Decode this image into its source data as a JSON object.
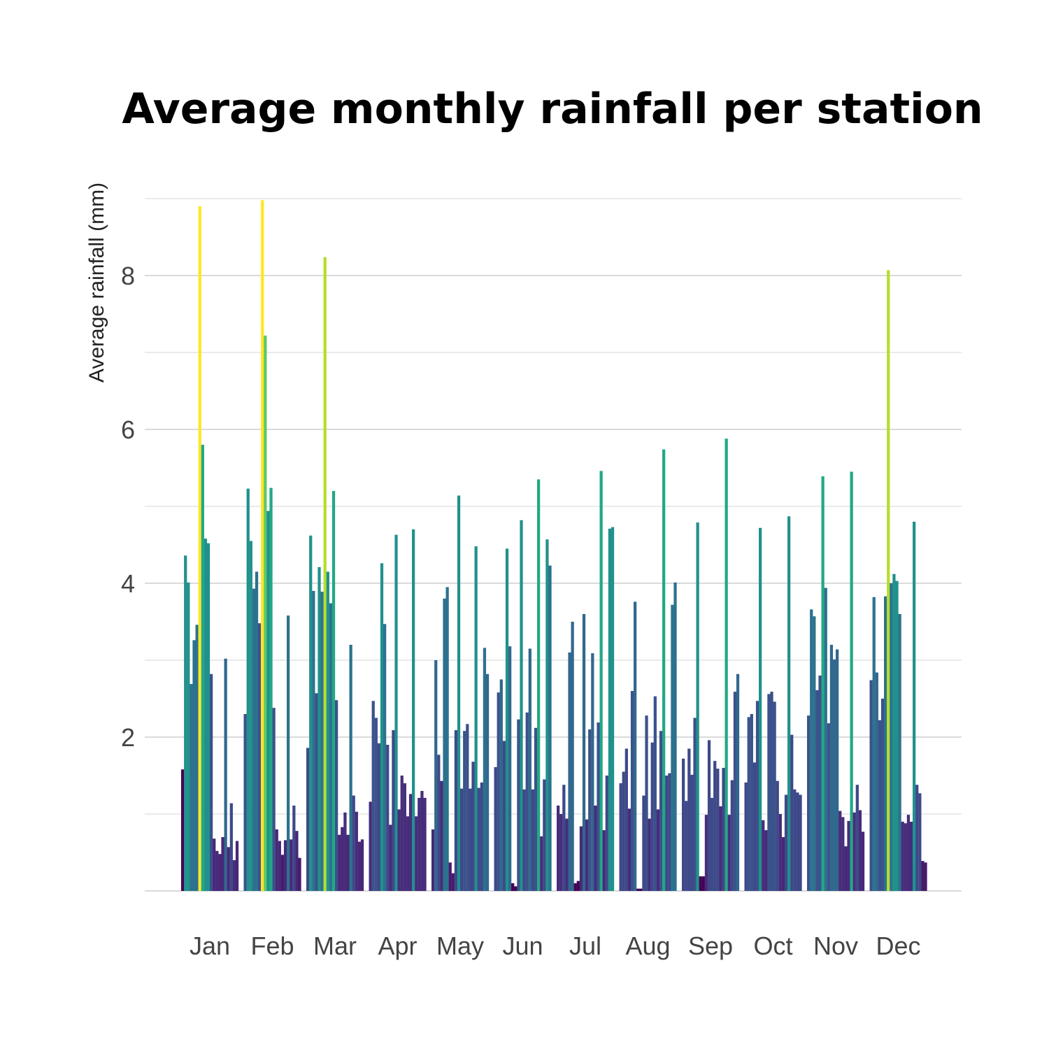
{
  "chart_data": {
    "type": "bar",
    "title": "Average monthly rainfall per station",
    "xlabel": "",
    "ylabel": "Average rainfall (mm)",
    "categories": [
      "Jan",
      "Feb",
      "Mar",
      "Apr",
      "May",
      "Jun",
      "Jul",
      "Aug",
      "Sep",
      "Oct",
      "Nov",
      "Dec"
    ],
    "ylim": [
      0,
      9
    ],
    "yticks": [
      2,
      4,
      6,
      8
    ],
    "grid": true,
    "legend": "none",
    "colormap": "viridis",
    "stations_per_month": 20,
    "series_by_month": [
      [
        1.58,
        4.36,
        4.01,
        2.69,
        3.26,
        3.46,
        8.9,
        5.8,
        4.58,
        4.52,
        2.82,
        0.68,
        0.52,
        0.48,
        0.7,
        3.02,
        0.57,
        1.14,
        0.4,
        0.65
      ],
      [
        2.3,
        5.23,
        4.55,
        3.93,
        4.15,
        3.48,
        8.98,
        7.22,
        4.94,
        5.24,
        2.38,
        0.8,
        0.65,
        0.47,
        0.66,
        3.58,
        0.67,
        1.11,
        0.78,
        0.43
      ],
      [
        1.86,
        4.62,
        3.9,
        2.57,
        4.21,
        3.89,
        8.24,
        4.15,
        3.74,
        5.2,
        2.48,
        0.73,
        0.83,
        1.02,
        0.73,
        3.2,
        1.24,
        1.03,
        0.64,
        0.67
      ],
      [
        1.16,
        2.47,
        2.25,
        1.92,
        4.26,
        3.47,
        1.9,
        0.86,
        2.09,
        4.63,
        1.06,
        1.5,
        1.4,
        0.97,
        1.26,
        4.7,
        0.97,
        1.21,
        1.3,
        1.21
      ],
      [
        0.8,
        3.0,
        1.77,
        1.43,
        3.8,
        3.95,
        0.37,
        0.23,
        2.09,
        5.14,
        1.33,
        2.08,
        2.17,
        1.33,
        1.68,
        4.48,
        1.34,
        1.41,
        3.16,
        2.82
      ],
      [
        1.61,
        2.58,
        2.75,
        1.95,
        4.45,
        3.18,
        0.1,
        0.06,
        2.23,
        4.82,
        1.32,
        2.32,
        3.15,
        1.32,
        2.12,
        5.35,
        0.71,
        1.45,
        4.57,
        4.23
      ],
      [
        1.11,
        1.0,
        1.38,
        0.94,
        3.1,
        3.5,
        0.1,
        0.13,
        0.84,
        3.6,
        0.93,
        2.1,
        3.09,
        1.11,
        2.19,
        5.46,
        0.79,
        1.5,
        4.71,
        4.73
      ],
      [
        1.4,
        1.55,
        1.85,
        1.07,
        2.6,
        3.76,
        0.03,
        0.03,
        1.24,
        2.28,
        0.94,
        1.93,
        2.53,
        1.06,
        2.08,
        5.74,
        1.5,
        1.53,
        3.72,
        4.01
      ],
      [
        1.72,
        1.17,
        1.85,
        1.51,
        2.25,
        4.79,
        0.19,
        0.19,
        0.99,
        1.96,
        1.21,
        1.69,
        1.59,
        1.1,
        1.6,
        5.88,
        0.99,
        1.44,
        2.59,
        2.82
      ],
      [
        1.41,
        2.26,
        2.3,
        1.67,
        2.47,
        4.72,
        0.92,
        0.79,
        2.56,
        2.59,
        2.46,
        1.43,
        1.0,
        0.7,
        1.25,
        4.87,
        2.03,
        1.32,
        1.28,
        1.25
      ],
      [
        2.28,
        3.66,
        3.57,
        2.61,
        2.8,
        5.39,
        3.94,
        2.18,
        3.2,
        3.01,
        3.14,
        1.04,
        0.96,
        0.58,
        0.91,
        5.45,
        1.02,
        1.38,
        1.05,
        0.77
      ],
      [
        2.74,
        3.82,
        2.84,
        2.22,
        2.5,
        3.83,
        8.07,
        4.0,
        4.12,
        4.03,
        3.6,
        0.9,
        0.88,
        0.99,
        0.9,
        4.8,
        1.38,
        1.27,
        0.39,
        0.37
      ]
    ],
    "bar_colors_by_month": [
      [
        "#440154",
        "#21918c",
        "#21918c",
        "#2c728e",
        "#2c728e",
        "#2c728e",
        "#fde725",
        "#22a884",
        "#21918c",
        "#21918c",
        "#3b528b",
        "#482878",
        "#482878",
        "#482878",
        "#482878",
        "#31688e",
        "#482878",
        "#3e4989",
        "#472d7b",
        "#482878"
      ],
      [
        "#3b528b",
        "#21918c",
        "#21918c",
        "#2c728e",
        "#2c728e",
        "#3b528b",
        "#fde725",
        "#5ec962",
        "#21918c",
        "#22a884",
        "#3b528b",
        "#482878",
        "#482878",
        "#481a6c",
        "#482878",
        "#2c728e",
        "#482878",
        "#3e4989",
        "#482878",
        "#481a6c"
      ],
      [
        "#3e4989",
        "#21918c",
        "#2c728e",
        "#3b528b",
        "#21918c",
        "#2c728e",
        "#b5de2b",
        "#21918c",
        "#2c728e",
        "#22a884",
        "#3b528b",
        "#482878",
        "#482878",
        "#472d7b",
        "#482878",
        "#2c728e",
        "#3e4989",
        "#472d7b",
        "#482878",
        "#482878"
      ],
      [
        "#472d7b",
        "#3b528b",
        "#3b528b",
        "#3e4989",
        "#21918c",
        "#2c728e",
        "#3e4989",
        "#482878",
        "#3e4989",
        "#21918c",
        "#472d7b",
        "#472d7b",
        "#472d7b",
        "#472d7b",
        "#472d7b",
        "#21918c",
        "#472d7b",
        "#472d7b",
        "#472d7b",
        "#472d7b"
      ],
      [
        "#482878",
        "#31688e",
        "#3e4989",
        "#472d7b",
        "#2c728e",
        "#2c728e",
        "#481a6c",
        "#481a6c",
        "#3e4989",
        "#21918c",
        "#3e4989",
        "#3b528b",
        "#3b528b",
        "#3e4989",
        "#3e4989",
        "#21918c",
        "#3e4989",
        "#3e4989",
        "#2c728e",
        "#31688e"
      ],
      [
        "#3e4989",
        "#3b528b",
        "#31688e",
        "#3e4989",
        "#21918c",
        "#31688e",
        "#440154",
        "#440154",
        "#3b528b",
        "#21918c",
        "#3e4989",
        "#3b528b",
        "#31688e",
        "#3e4989",
        "#3b528b",
        "#22a884",
        "#472d7b",
        "#3e4989",
        "#21918c",
        "#2c728e"
      ],
      [
        "#472d7b",
        "#472d7b",
        "#3e4989",
        "#472d7b",
        "#31688e",
        "#31688e",
        "#440154",
        "#440154",
        "#482878",
        "#31688e",
        "#472d7b",
        "#3b528b",
        "#31688e",
        "#472d7b",
        "#3b528b",
        "#22a884",
        "#482878",
        "#3e4989",
        "#21918c",
        "#21918c"
      ],
      [
        "#3e4989",
        "#3e4989",
        "#3e4989",
        "#472d7b",
        "#3b528b",
        "#31688e",
        "#440154",
        "#440154",
        "#3e4989",
        "#3b528b",
        "#472d7b",
        "#3e4989",
        "#3b528b",
        "#472d7b",
        "#3b528b",
        "#22a884",
        "#3e4989",
        "#3e4989",
        "#2c728e",
        "#2c728e"
      ],
      [
        "#3e4989",
        "#3e4989",
        "#3e4989",
        "#3e4989",
        "#3b528b",
        "#21918c",
        "#440154",
        "#440154",
        "#472d7b",
        "#3e4989",
        "#3e4989",
        "#3e4989",
        "#3e4989",
        "#472d7b",
        "#3e4989",
        "#22a884",
        "#472d7b",
        "#3e4989",
        "#3b528b",
        "#31688e"
      ],
      [
        "#3e4989",
        "#3b528b",
        "#3b528b",
        "#3e4989",
        "#3b528b",
        "#21918c",
        "#472d7b",
        "#482878",
        "#3b528b",
        "#3b528b",
        "#3b528b",
        "#3e4989",
        "#472d7b",
        "#482878",
        "#3e4989",
        "#21918c",
        "#3e4989",
        "#3e4989",
        "#3e4989",
        "#3e4989"
      ],
      [
        "#3b528b",
        "#2c728e",
        "#2c728e",
        "#3b528b",
        "#3b528b",
        "#22a884",
        "#2c728e",
        "#3b528b",
        "#31688e",
        "#31688e",
        "#31688e",
        "#472d7b",
        "#472d7b",
        "#482878",
        "#472d7b",
        "#22a884",
        "#472d7b",
        "#3e4989",
        "#472d7b",
        "#482878"
      ],
      [
        "#3b528b",
        "#2c728e",
        "#31688e",
        "#3b528b",
        "#3b528b",
        "#2c728e",
        "#b5de2b",
        "#2c728e",
        "#21918c",
        "#21918c",
        "#2c728e",
        "#472d7b",
        "#472d7b",
        "#472d7b",
        "#472d7b",
        "#21918c",
        "#3e4989",
        "#3e4989",
        "#481a6c",
        "#481a6c"
      ]
    ]
  }
}
